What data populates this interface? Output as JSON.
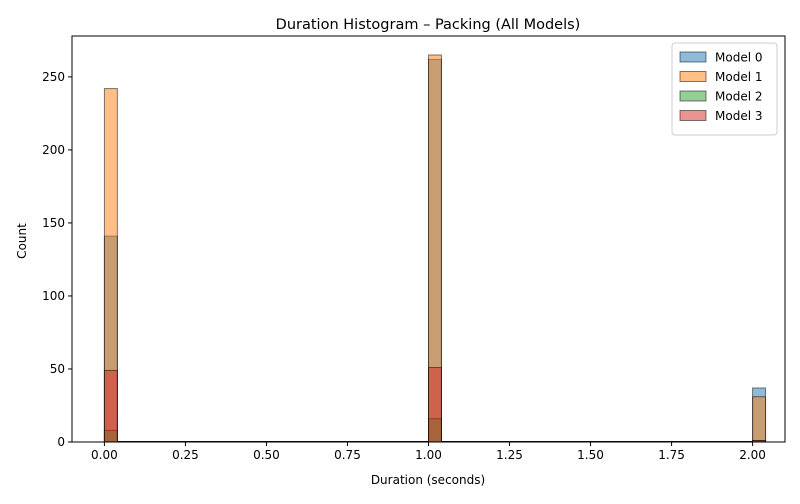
{
  "chart_data": {
    "type": "bar",
    "subtype": "overlapping-histogram",
    "title": "Duration Histogram – Packing (All Models)",
    "xlabel": "Duration (seconds)",
    "ylabel": "Count",
    "xlim": [
      -0.1,
      2.1
    ],
    "ylim": [
      0,
      278
    ],
    "xticks": [
      0.0,
      0.25,
      0.5,
      0.75,
      1.0,
      1.25,
      1.5,
      1.75,
      2.0
    ],
    "xtick_labels": [
      "0.00",
      "0.25",
      "0.50",
      "0.75",
      "1.00",
      "1.25",
      "1.50",
      "1.75",
      "2.00"
    ],
    "yticks": [
      0,
      50,
      100,
      150,
      200,
      250
    ],
    "ytick_labels": [
      "0",
      "50",
      "100",
      "150",
      "200",
      "250"
    ],
    "bin_width": 0.04,
    "bin_range": [
      0,
      2
    ],
    "grid": false,
    "legend_position": "top-right",
    "series": [
      {
        "name": "Model 0",
        "color": "#1f77b4",
        "bars": [
          {
            "x": 0.0,
            "value": 141
          },
          {
            "x": 1.0,
            "value": 262
          },
          {
            "x": 2.0,
            "value": 37
          }
        ]
      },
      {
        "name": "Model 1",
        "color": "#ff7f0e",
        "bars": [
          {
            "x": 0.0,
            "value": 242
          },
          {
            "x": 1.0,
            "value": 265
          },
          {
            "x": 2.0,
            "value": 31
          }
        ]
      },
      {
        "name": "Model 2",
        "color": "#2ca02c",
        "bars": [
          {
            "x": 0.0,
            "value": 8
          },
          {
            "x": 1.0,
            "value": 16
          },
          {
            "x": 2.0,
            "value": 1
          }
        ]
      },
      {
        "name": "Model 3",
        "color": "#d62728",
        "bars": [
          {
            "x": 0.0,
            "value": 49
          },
          {
            "x": 1.0,
            "value": 51
          },
          {
            "x": 2.0,
            "value": 1
          }
        ]
      }
    ]
  }
}
